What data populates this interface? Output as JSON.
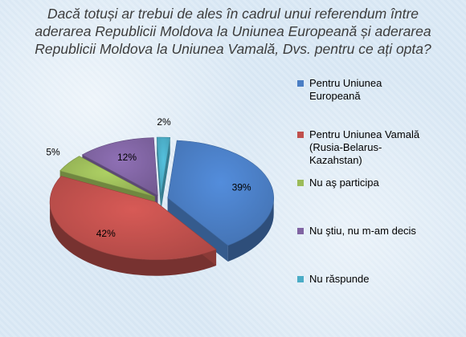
{
  "title_lines": [
    "Dacă totuși ar trebui de ales în cadrul unui referendum între",
    "aderarea Republicii Moldova la Uniunea Europeană și aderarea",
    "Republicii Moldova la Uniunea Vamală, Dvs. pentru ce ați opta?"
  ],
  "chart_data": {
    "type": "pie",
    "style": "3d-exploded",
    "title": "Dacă totuși ar trebui de ales în cadrul unui referendum între aderarea Republicii Moldova la Uniunea Europeană și aderarea Republicii Moldova la Uniunea Vamală, Dvs. pentru ce ați opta?",
    "legend_position": "right",
    "slices": [
      {
        "label": "Pentru Uniunea Europeană",
        "value": 39,
        "display": "39%",
        "color": "#4a7ec4"
      },
      {
        "label": "Pentru Uniunea Vamală (Rusia-Belarus-Kazahstan)",
        "value": 42,
        "display": "42%",
        "color": "#c0504d"
      },
      {
        "label": "Nu aș participa",
        "value": 5,
        "display": "5%",
        "color": "#9bbb59"
      },
      {
        "label": "Nu știu, nu m-am decis",
        "value": 12,
        "display": "12%",
        "color": "#8064a2"
      },
      {
        "label": "Nu răspunde",
        "value": 2,
        "display": "2%",
        "color": "#4bacc6"
      }
    ]
  },
  "legend": [
    {
      "lines": [
        "Pentru Uniunea",
        "Europeană"
      ],
      "color": "#4a7ec4"
    },
    {
      "lines": [
        "Pentru Uniunea Vamală",
        "(Rusia-Belarus-",
        "Kazahstan)"
      ],
      "color": "#c0504d"
    },
    {
      "lines": [
        "Nu aş participa"
      ],
      "color": "#9bbb59"
    },
    {
      "lines": [
        "Nu ştiu, nu m-am decis"
      ],
      "color": "#8064a2"
    },
    {
      "lines": [
        "Nu răspunde"
      ],
      "color": "#4bacc6"
    }
  ]
}
